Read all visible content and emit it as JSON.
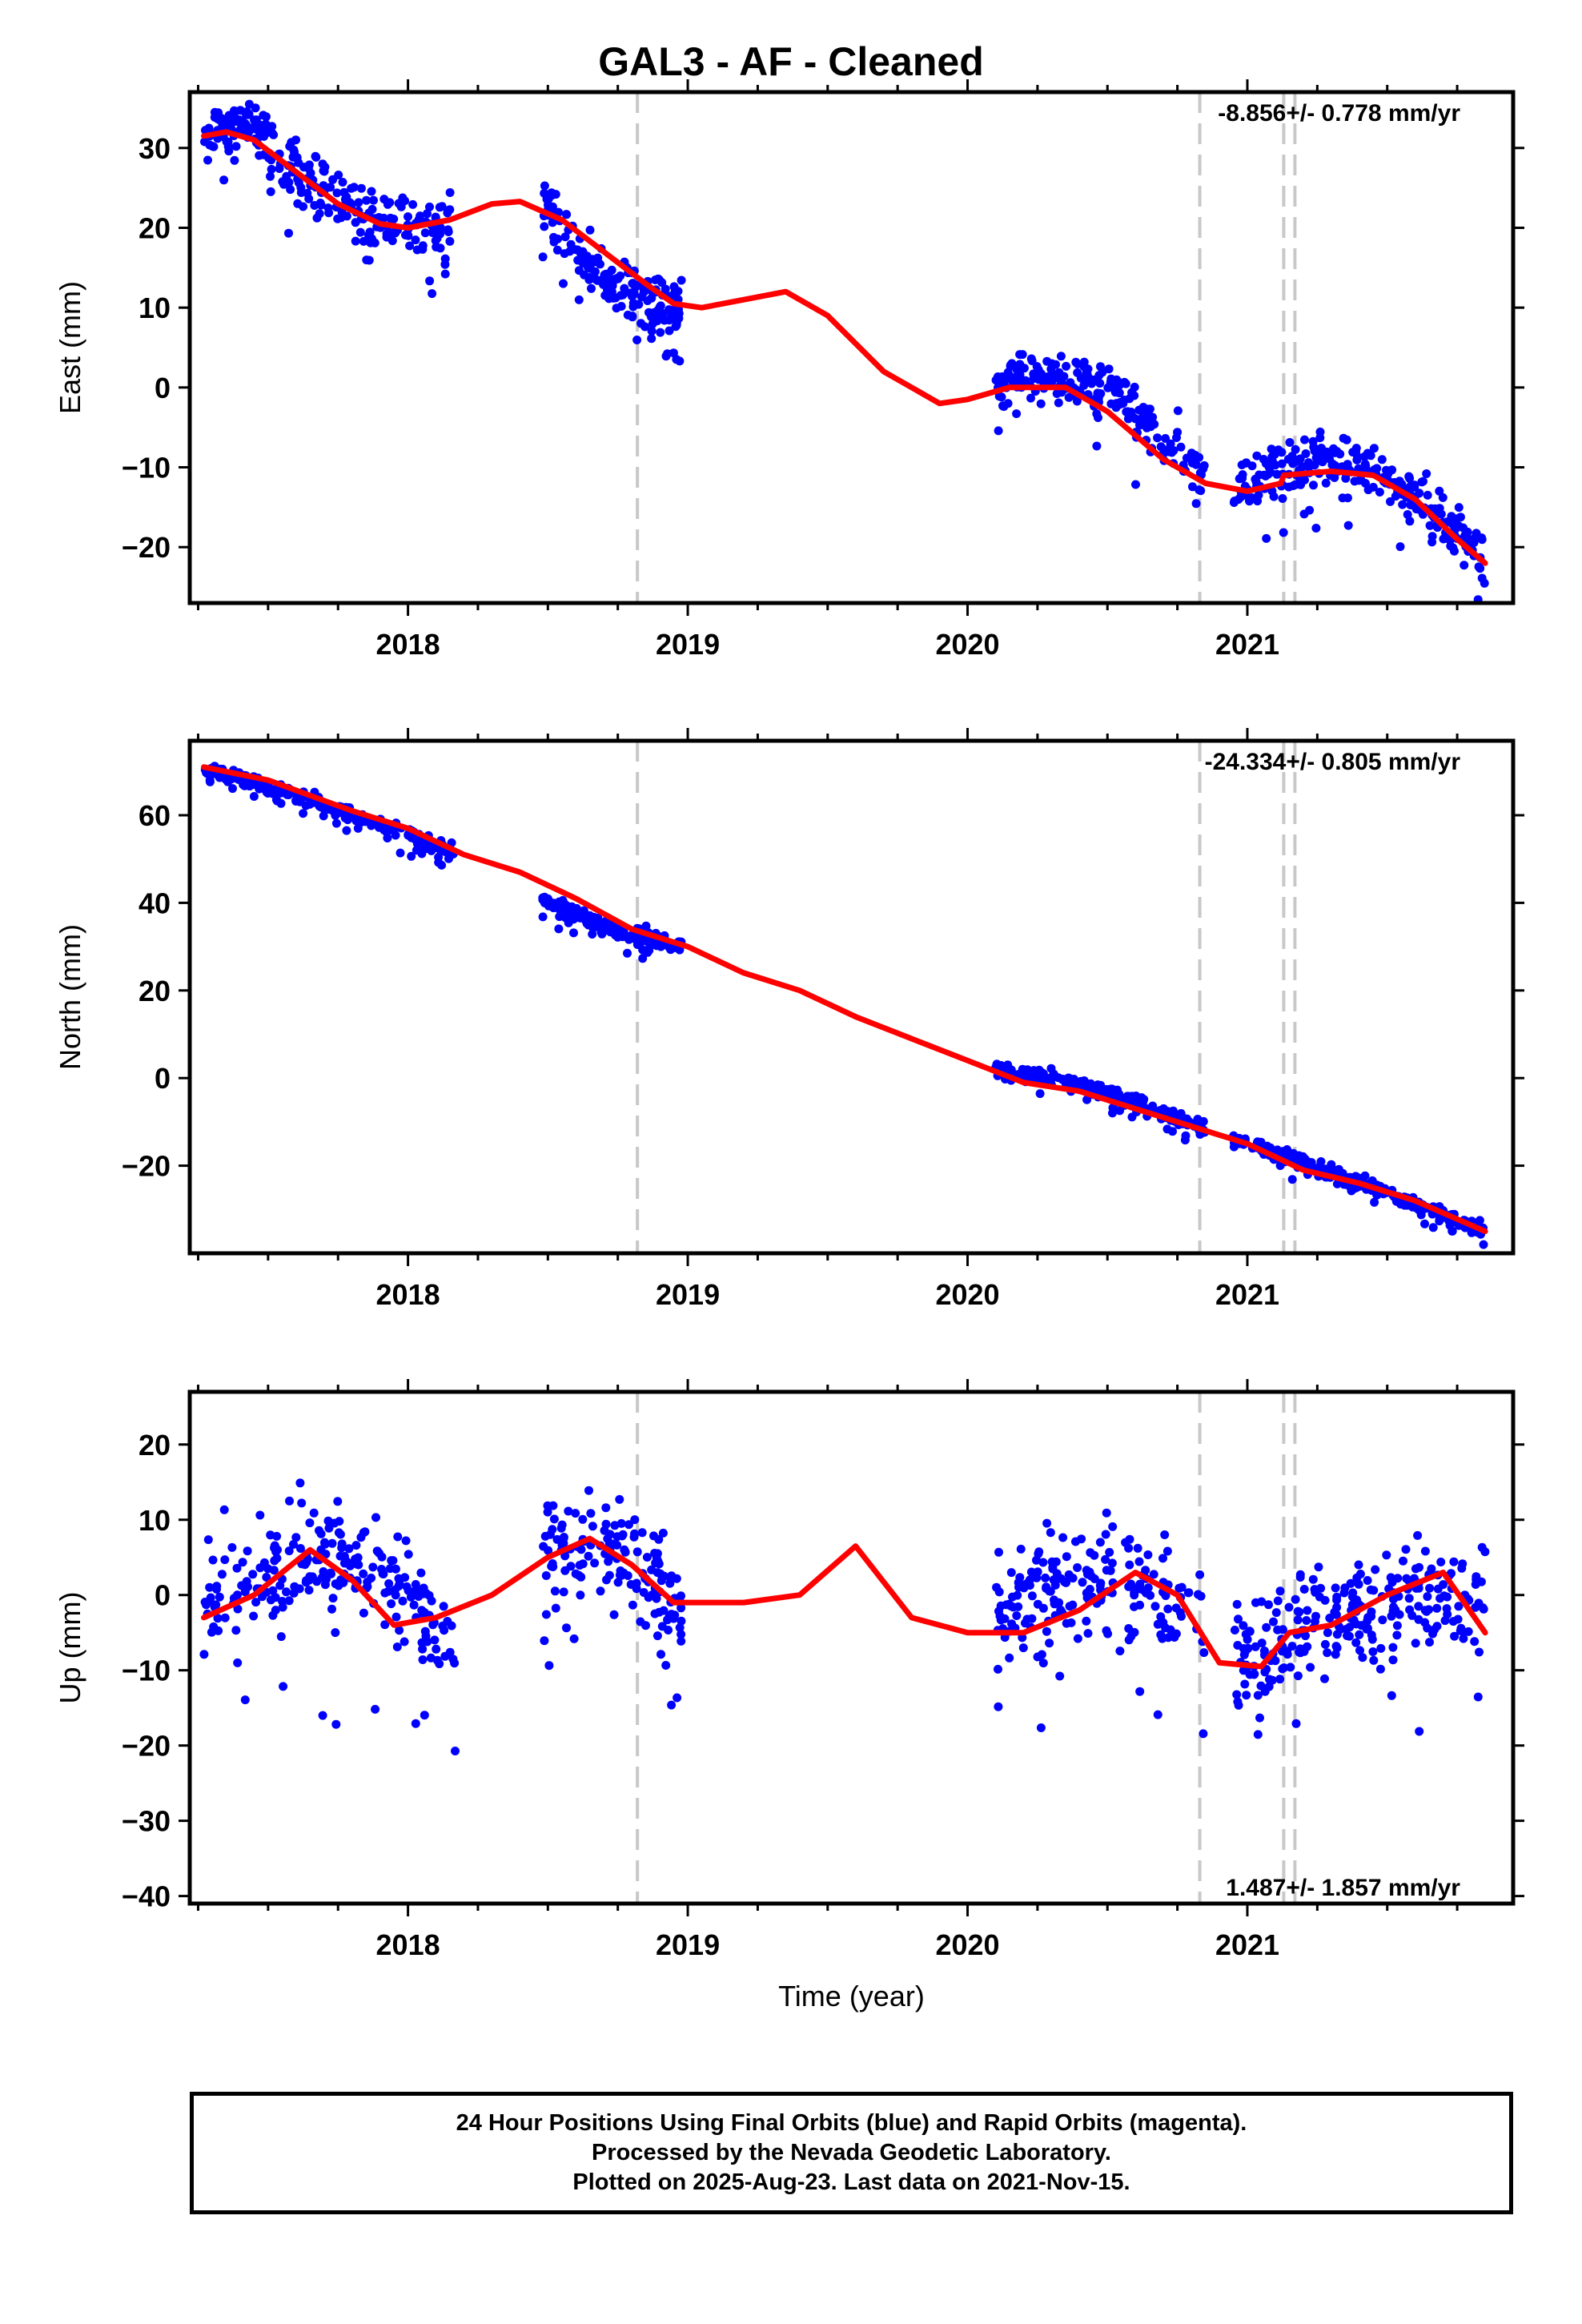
{
  "title": "GAL3  - AF - Cleaned",
  "footer": {
    "line1": "24 Hour Positions Using Final Orbits (blue) and Rapid Orbits (magenta).",
    "line2": "Processed by the Nevada Geodetic Laboratory.",
    "line3": "Plotted on 2025-Aug-23. Last data on 2021-Nov-15."
  },
  "colors": {
    "points": "#0000ff",
    "model": "#ff0000",
    "steps": "#c8c8c8"
  },
  "chart_data": [
    {
      "type": "scatter",
      "ylabel": "East (mm)",
      "xlabel": "",
      "xlim": [
        2017.22,
        2021.95
      ],
      "ylim": [
        -27,
        37
      ],
      "yticks": [
        -20,
        -10,
        0,
        10,
        20,
        30
      ],
      "xticks": [
        2018,
        2019,
        2020,
        2021
      ],
      "xtick_labels": [
        "2018",
        "2019",
        "2020",
        "2021"
      ],
      "rate_label": "-8.856+/- 0.778 mm/yr",
      "rate_position": "top-right",
      "step_lines": [
        2018.82,
        2020.83,
        2021.13,
        2021.17
      ],
      "model": {
        "x": [
          2017.27,
          2017.35,
          2017.45,
          2017.6,
          2017.75,
          2017.9,
          2018.0,
          2018.15,
          2018.3,
          2018.4,
          2018.55,
          2018.7,
          2018.85,
          2018.95,
          2019.05,
          2019.2,
          2019.35,
          2019.5,
          2019.7,
          2019.9,
          2020.0,
          2020.15,
          2020.35,
          2020.5,
          2020.7,
          2020.85,
          2021.0,
          2021.12,
          2021.13,
          2021.3,
          2021.45,
          2021.6,
          2021.75,
          2021.85
        ],
        "y": [
          31.5,
          32,
          31,
          27,
          23,
          20.5,
          20,
          21,
          23,
          23.3,
          21,
          17,
          13,
          10.5,
          10,
          11,
          12,
          9,
          2,
          -2,
          -1.5,
          0,
          0,
          -3,
          -9,
          -12,
          -13,
          -12,
          -11,
          -10.5,
          -11,
          -14,
          -19,
          -22
        ]
      },
      "points": [
        {
          "range": [
            2017.27,
            2017.5
          ],
          "center": [
            31,
            33,
            32
          ],
          "spread": 2.2,
          "n": 80
        },
        {
          "range": [
            2017.5,
            2018.17
          ],
          "center": [
            30,
            22,
            20.5
          ],
          "spread": 3.5,
          "n": 180
        },
        {
          "range": [
            2018.48,
            2018.98
          ],
          "center": [
            23,
            13,
            10.5
          ],
          "spread": 3.2,
          "n": 170
        },
        {
          "range": [
            2020.1,
            2020.6
          ],
          "center": [
            0,
            1,
            -2
          ],
          "spread": 3,
          "n": 160
        },
        {
          "range": [
            2020.6,
            2020.85
          ],
          "center": [
            -4,
            -7,
            -11
          ],
          "spread": 3,
          "n": 60
        },
        {
          "range": [
            2020.95,
            2021.85
          ],
          "center": [
            -13,
            -10,
            -22
          ],
          "spread": 3,
          "n": 260
        }
      ]
    },
    {
      "type": "scatter",
      "ylabel": "North (mm)",
      "xlabel": "",
      "xlim": [
        2017.22,
        2021.95
      ],
      "ylim": [
        -40,
        77
      ],
      "yticks": [
        -20,
        0,
        20,
        40,
        60
      ],
      "xticks": [
        2018,
        2019,
        2020,
        2021
      ],
      "xtick_labels": [
        "2018",
        "2019",
        "2020",
        "2021"
      ],
      "rate_label": "-24.334+/- 0.805 mm/yr",
      "rate_position": "top-right",
      "step_lines": [
        2018.82,
        2020.83,
        2021.13,
        2021.17
      ],
      "model": {
        "x": [
          2017.27,
          2017.5,
          2017.8,
          2018.0,
          2018.2,
          2018.4,
          2018.6,
          2018.8,
          2019.0,
          2019.2,
          2019.4,
          2019.6,
          2019.8,
          2020.0,
          2020.2,
          2020.4,
          2020.6,
          2020.8,
          2021.0,
          2021.2,
          2021.4,
          2021.6,
          2021.85
        ],
        "y": [
          71,
          68,
          61,
          57,
          51,
          47,
          41,
          34,
          30,
          24,
          20,
          14,
          9,
          4,
          -1,
          -3,
          -7,
          -11,
          -15,
          -21,
          -24,
          -28,
          -35
        ]
      },
      "points": [
        {
          "range": [
            2017.27,
            2018.17
          ],
          "center": [
            71,
            62,
            51
          ],
          "spread": 1.6,
          "n": 260
        },
        {
          "range": [
            2018.48,
            2018.98
          ],
          "center": [
            41,
            34,
            30
          ],
          "spread": 1.8,
          "n": 170
        },
        {
          "range": [
            2020.1,
            2020.85
          ],
          "center": [
            2,
            -3,
            -12
          ],
          "spread": 1.5,
          "n": 220
        },
        {
          "range": [
            2020.95,
            2021.85
          ],
          "center": [
            -14,
            -24,
            -35
          ],
          "spread": 1.6,
          "n": 260
        }
      ]
    },
    {
      "type": "scatter",
      "ylabel": "Up (mm)",
      "xlabel": "Time (year)",
      "xlim": [
        2017.22,
        2021.95
      ],
      "ylim": [
        -41,
        27
      ],
      "yticks": [
        -40,
        -30,
        -20,
        -10,
        0,
        10,
        20
      ],
      "xticks": [
        2018,
        2019,
        2020,
        2021
      ],
      "xtick_labels": [
        "2018",
        "2019",
        "2020",
        "2021"
      ],
      "rate_label": "1.487+/- 1.857 mm/yr",
      "rate_position": "bottom-right",
      "step_lines": [
        2018.82,
        2020.83,
        2021.13,
        2021.17
      ],
      "model": {
        "x": [
          2017.27,
          2017.45,
          2017.65,
          2017.8,
          2017.95,
          2018.1,
          2018.3,
          2018.5,
          2018.65,
          2018.8,
          2018.95,
          2019.2,
          2019.4,
          2019.6,
          2019.8,
          2020.0,
          2020.2,
          2020.4,
          2020.6,
          2020.75,
          2020.9,
          2021.05,
          2021.15,
          2021.3,
          2021.5,
          2021.7,
          2021.85
        ],
        "y": [
          -3,
          0,
          6,
          2,
          -4,
          -3,
          0,
          5,
          7.5,
          4,
          -1,
          -1,
          0,
          6.5,
          -3,
          -5,
          -5,
          -2,
          3,
          0,
          -9,
          -9.5,
          -5,
          -4,
          0,
          3,
          -5
        ]
      },
      "points": [
        {
          "range": [
            2017.27,
            2018.17
          ],
          "center": [
            0,
            4,
            -5
          ],
          "spread": 7,
          "n": 240
        },
        {
          "range": [
            2018.48,
            2018.98
          ],
          "center": [
            4,
            6,
            -3
          ],
          "spread": 6,
          "n": 150
        },
        {
          "range": [
            2020.1,
            2020.85
          ],
          "center": [
            -3,
            2,
            -3
          ],
          "spread": 6,
          "n": 200
        },
        {
          "range": [
            2020.95,
            2021.85
          ],
          "center": [
            -9,
            -2,
            0
          ],
          "spread": 6.5,
          "n": 260
        }
      ]
    }
  ]
}
